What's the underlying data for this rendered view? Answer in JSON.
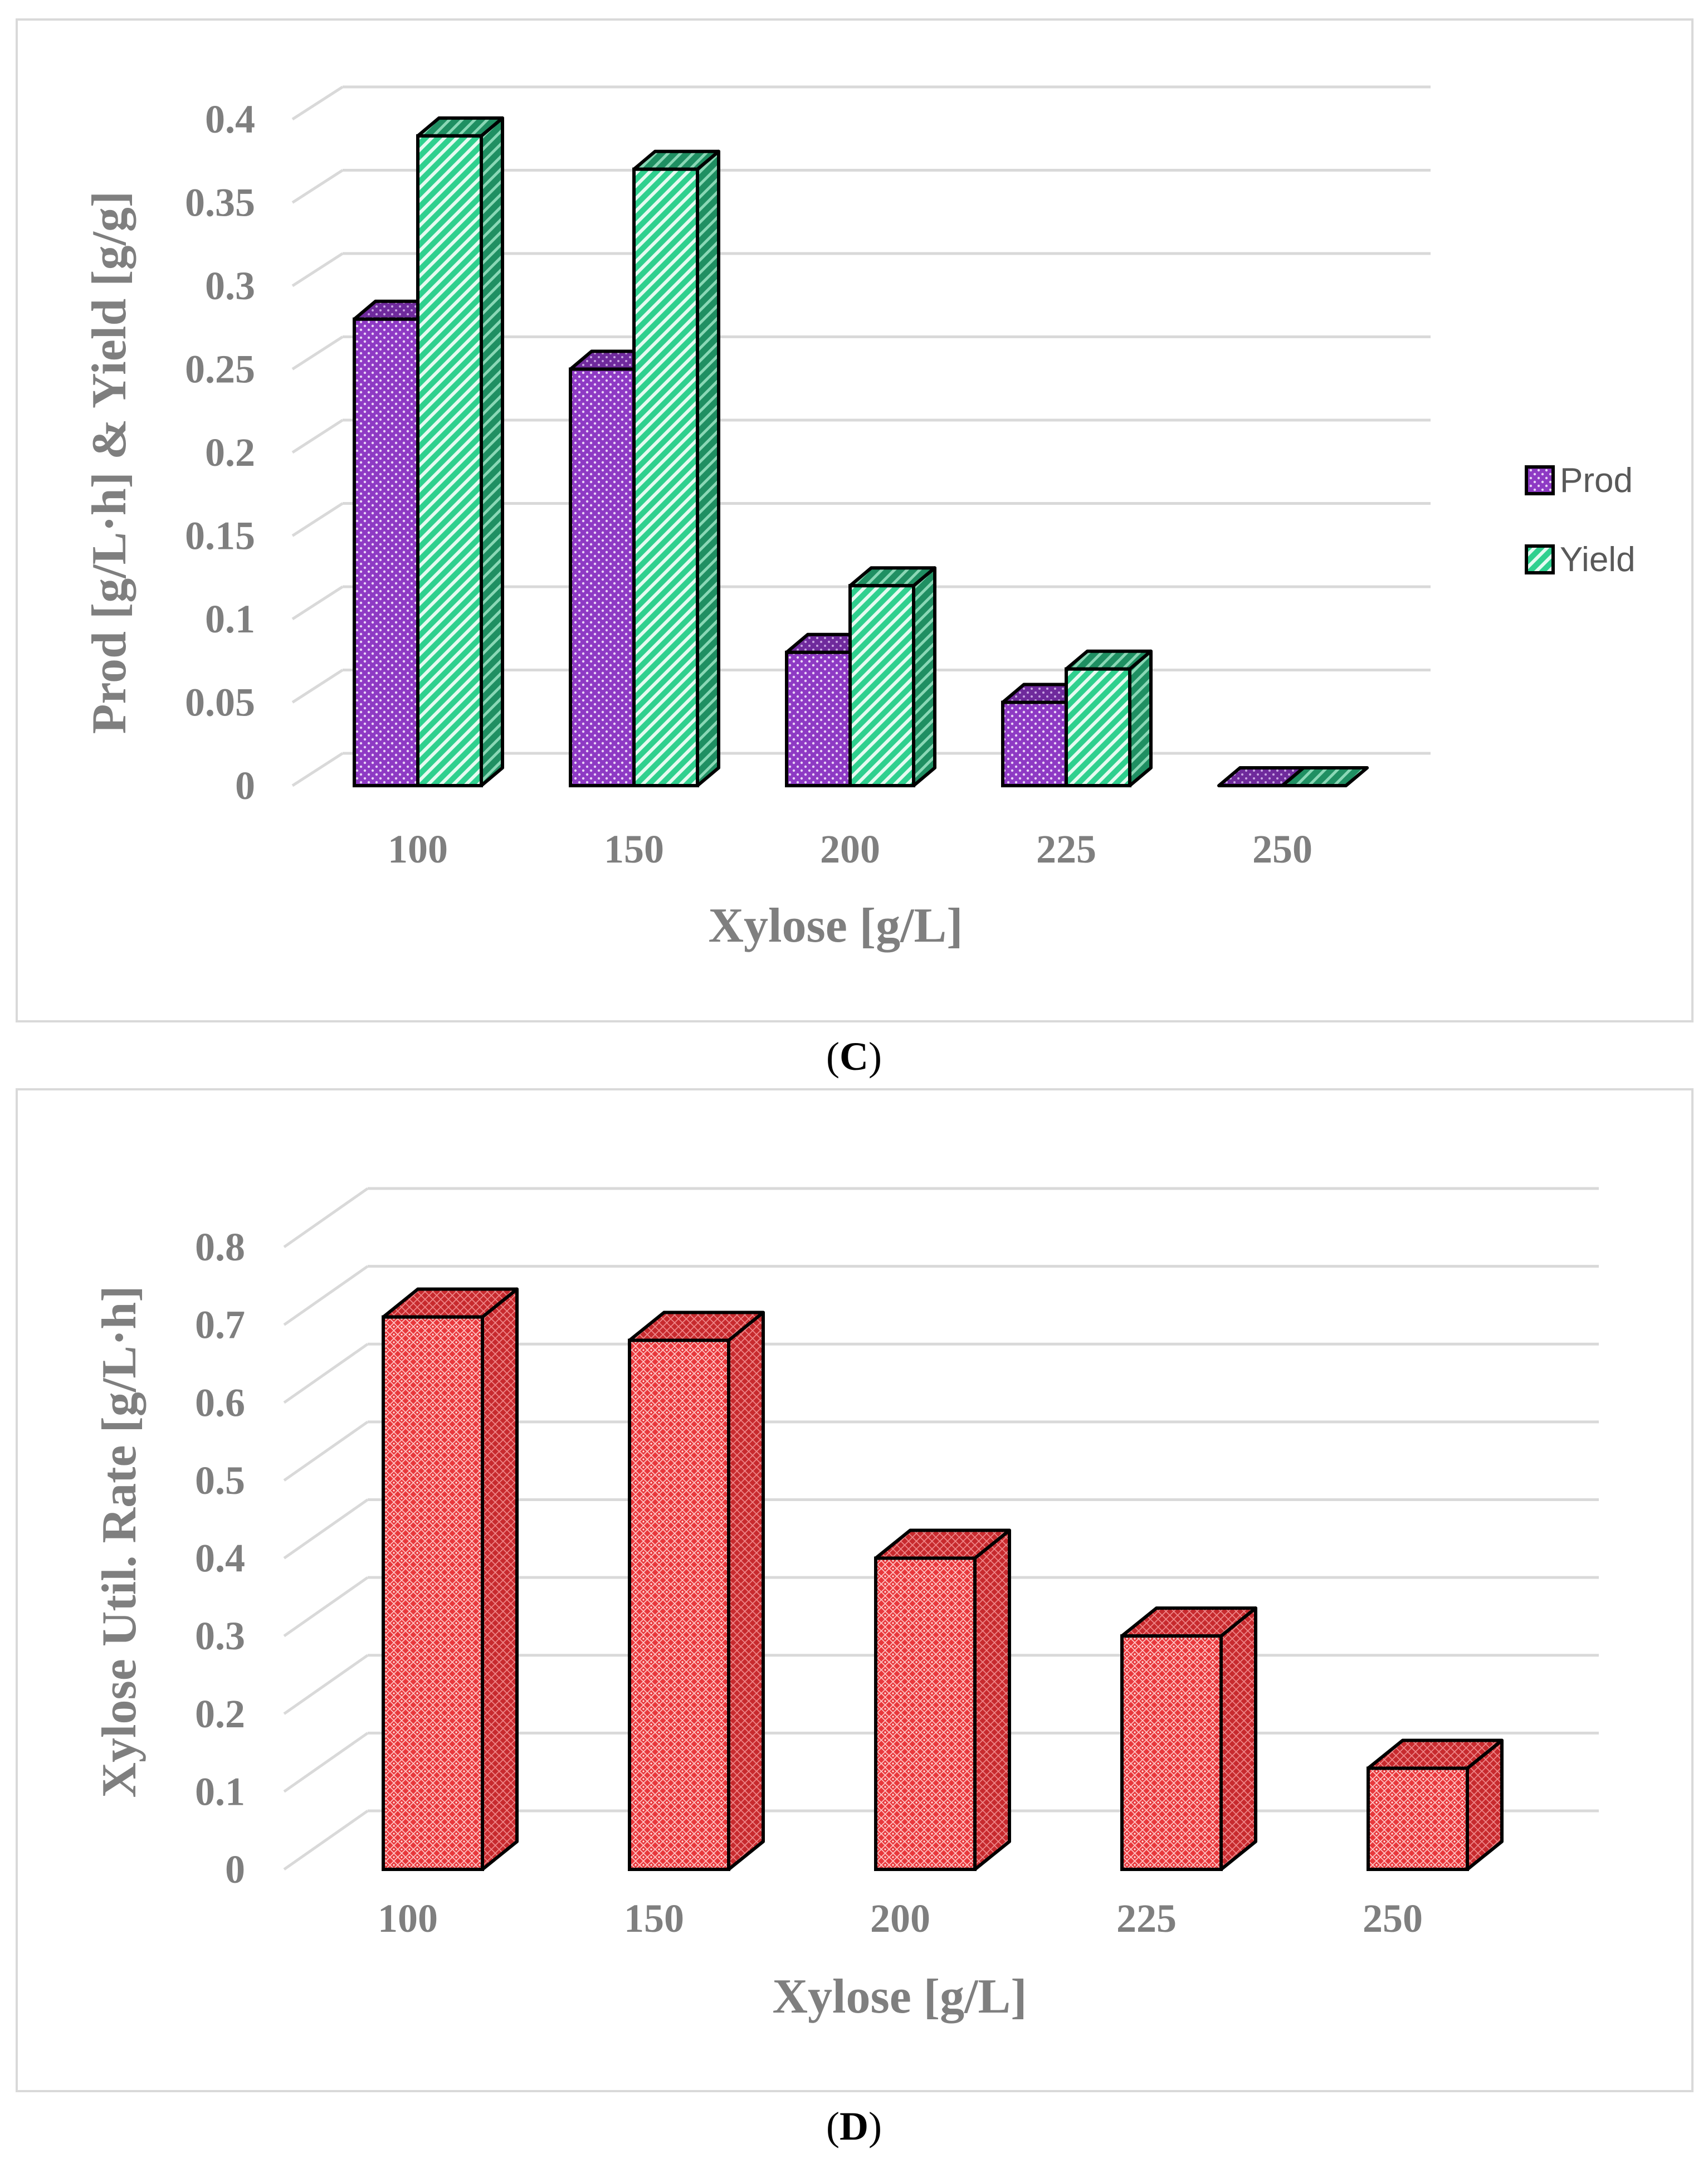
{
  "colors": {
    "prod": "#8e3ac4",
    "prod_top": "#6f2a9c",
    "yield": "#2fd08e",
    "yield_side": "#1f8f62",
    "rate": "#e8383c",
    "rate_side": "#c72a2e",
    "grid": "#d9d9d9",
    "axis_text": "#7f7f7f"
  },
  "panels": {
    "c_label": "C",
    "d_label": "D"
  },
  "chart_data": [
    {
      "id": "C",
      "type": "bar",
      "title": "",
      "xlabel": "Xylose [g/L]",
      "ylabel": "Prod [g/L·h] & Yield [g/g]",
      "categories": [
        "100",
        "150",
        "200",
        "225",
        "250"
      ],
      "series": [
        {
          "name": "Prod",
          "values": [
            0.28,
            0.25,
            0.08,
            0.05,
            0.0
          ]
        },
        {
          "name": "Yield",
          "values": [
            0.39,
            0.37,
            0.12,
            0.07,
            0.0
          ]
        }
      ],
      "ylim": [
        0,
        0.4
      ],
      "yticks": [
        "0",
        "0.05",
        "0.1",
        "0.15",
        "0.2",
        "0.25",
        "0.3",
        "0.35",
        "0.4"
      ],
      "legend_position": "right",
      "grid": true
    },
    {
      "id": "D",
      "type": "bar",
      "title": "",
      "xlabel": "Xylose [g/L]",
      "ylabel": "Xylose Util. Rate [g/L·h]",
      "categories": [
        "100",
        "150",
        "200",
        "225",
        "250"
      ],
      "series": [
        {
          "name": "Xylose Util. Rate",
          "values": [
            0.71,
            0.68,
            0.4,
            0.3,
            0.13
          ]
        }
      ],
      "ylim": [
        0,
        0.8
      ],
      "yticks": [
        "0",
        "0.1",
        "0.2",
        "0.3",
        "0.4",
        "0.5",
        "0.6",
        "0.7",
        "0.8"
      ],
      "legend_position": "none",
      "grid": true
    }
  ]
}
